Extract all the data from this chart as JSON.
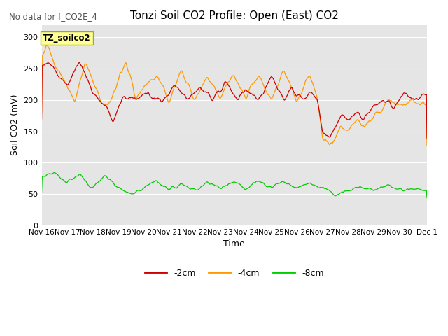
{
  "title": "Tonzi Soil CO2 Profile: Open (East) CO2",
  "subtitle": "No data for f_CO2E_4",
  "ylabel": "Soil CO2 (mV)",
  "xlabel": "Time",
  "annotation": "TZ_soilco2",
  "ylim": [
    0,
    320
  ],
  "yticks": [
    0,
    50,
    100,
    150,
    200,
    250,
    300
  ],
  "x_start": 0,
  "x_end": 15.1,
  "xtick_positions": [
    0,
    1,
    2,
    3,
    4,
    5,
    6,
    7,
    8,
    9,
    10,
    11,
    12,
    13,
    14,
    15.1
  ],
  "xtick_labels": [
    "Nov 16",
    "Nov 17",
    "Nov 18",
    "Nov 19",
    "Nov 20",
    "Nov 21",
    "Nov 22",
    "Nov 23",
    "Nov 24",
    "Nov 25",
    "Nov 26",
    "Nov 27",
    "Nov 28",
    "Nov 29",
    "Nov 30",
    "Dec 1"
  ],
  "color_2cm": "#cc0000",
  "color_4cm": "#ff9900",
  "color_8cm": "#00cc00",
  "bg_color": "#e5e5e5",
  "legend_labels": [
    "-2cm",
    "-4cm",
    "-8cm"
  ],
  "title_fontsize": 11,
  "axis_fontsize": 9,
  "tick_fontsize": 8,
  "legend_fontsize": 9
}
